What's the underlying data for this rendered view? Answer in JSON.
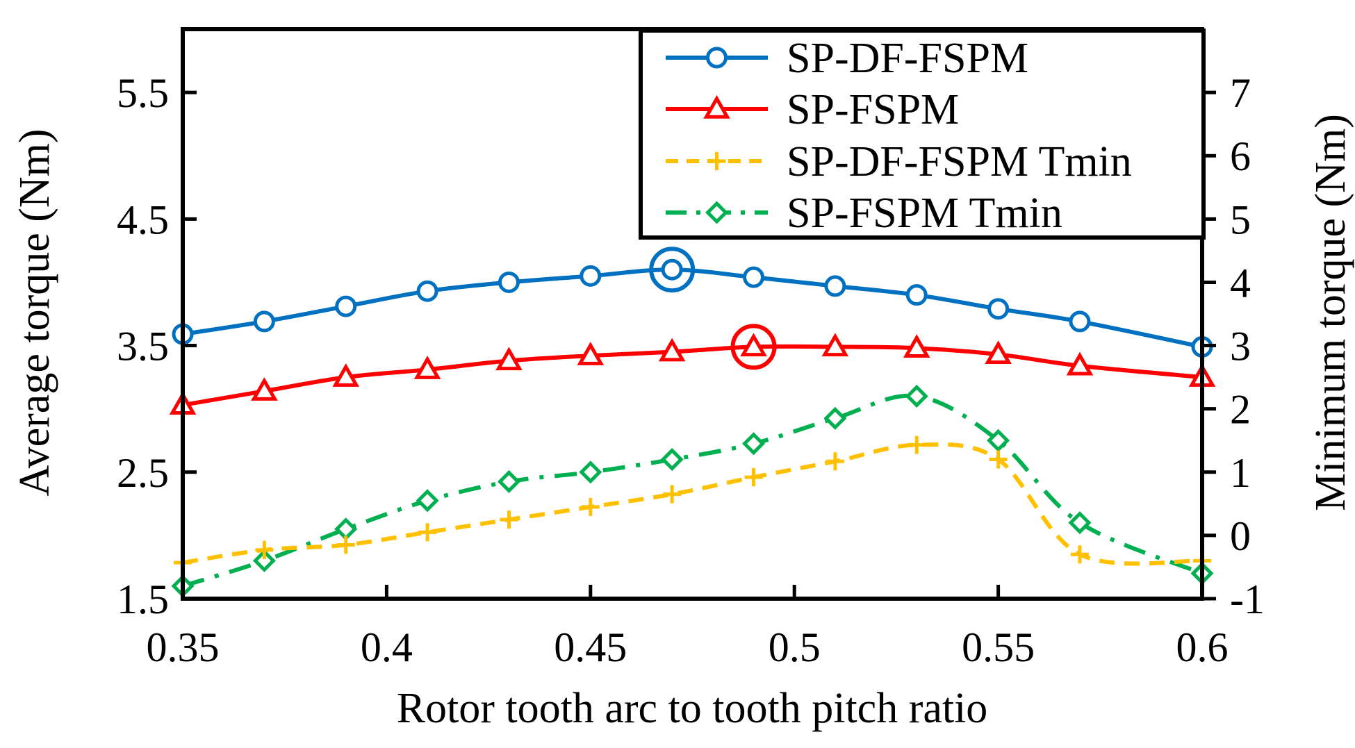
{
  "chart_data": {
    "type": "line",
    "title": "",
    "xlabel": "Rotor tooth arc to tooth pitch ratio",
    "ylabel_left": "Average torque (Nm)",
    "ylabel_right": "Minimum torque (Nm)",
    "x": [
      0.35,
      0.37,
      0.39,
      0.41,
      0.43,
      0.45,
      0.47,
      0.49,
      0.51,
      0.53,
      0.55,
      0.57,
      0.6
    ],
    "xlim": [
      0.35,
      0.6
    ],
    "ylim_left": [
      1.5,
      6.0
    ],
    "ylim_right": [
      -1,
      8
    ],
    "xticks": [
      "0.35",
      "0.4",
      "0.45",
      "0.5",
      "0.55",
      "0.6"
    ],
    "yticks_left": [
      "1.5",
      "2.5",
      "3.5",
      "4.5",
      "5.5"
    ],
    "yticks_right": [
      "-1",
      "0",
      "1",
      "2",
      "3",
      "4",
      "5",
      "6",
      "7"
    ],
    "legend_position": "top-right",
    "series": [
      {
        "name": "SP-DF-FSPM",
        "axis": "left",
        "color": "#0070C0",
        "marker": "circle",
        "dash": "solid",
        "values": [
          3.59,
          3.69,
          3.81,
          3.93,
          4.0,
          4.05,
          4.1,
          4.04,
          3.97,
          3.9,
          3.79,
          3.69,
          3.49
        ],
        "highlight_index": 6
      },
      {
        "name": "SP-FSPM",
        "axis": "left",
        "color": "#FF0000",
        "marker": "triangle",
        "dash": "solid",
        "values": [
          3.03,
          3.14,
          3.25,
          3.31,
          3.38,
          3.42,
          3.45,
          3.49,
          3.49,
          3.48,
          3.43,
          3.34,
          3.25
        ],
        "highlight_index": 7
      },
      {
        "name": "SP-DF-FSPM Tmin",
        "axis": "right",
        "color": "#FFC000",
        "marker": "plus",
        "dash": "dash",
        "values": [
          -0.43,
          -0.23,
          -0.15,
          0.05,
          0.25,
          0.45,
          0.65,
          0.92,
          1.17,
          1.43,
          1.2,
          -0.3,
          -0.4
        ]
      },
      {
        "name": "SP-FSPM Tmin",
        "axis": "right",
        "color": "#00B050",
        "marker": "diamond",
        "dash": "dashdot",
        "values": [
          -0.8,
          -0.4,
          0.1,
          0.55,
          0.85,
          1.0,
          1.2,
          1.45,
          1.85,
          2.2,
          1.5,
          0.2,
          -0.6
        ]
      }
    ]
  }
}
